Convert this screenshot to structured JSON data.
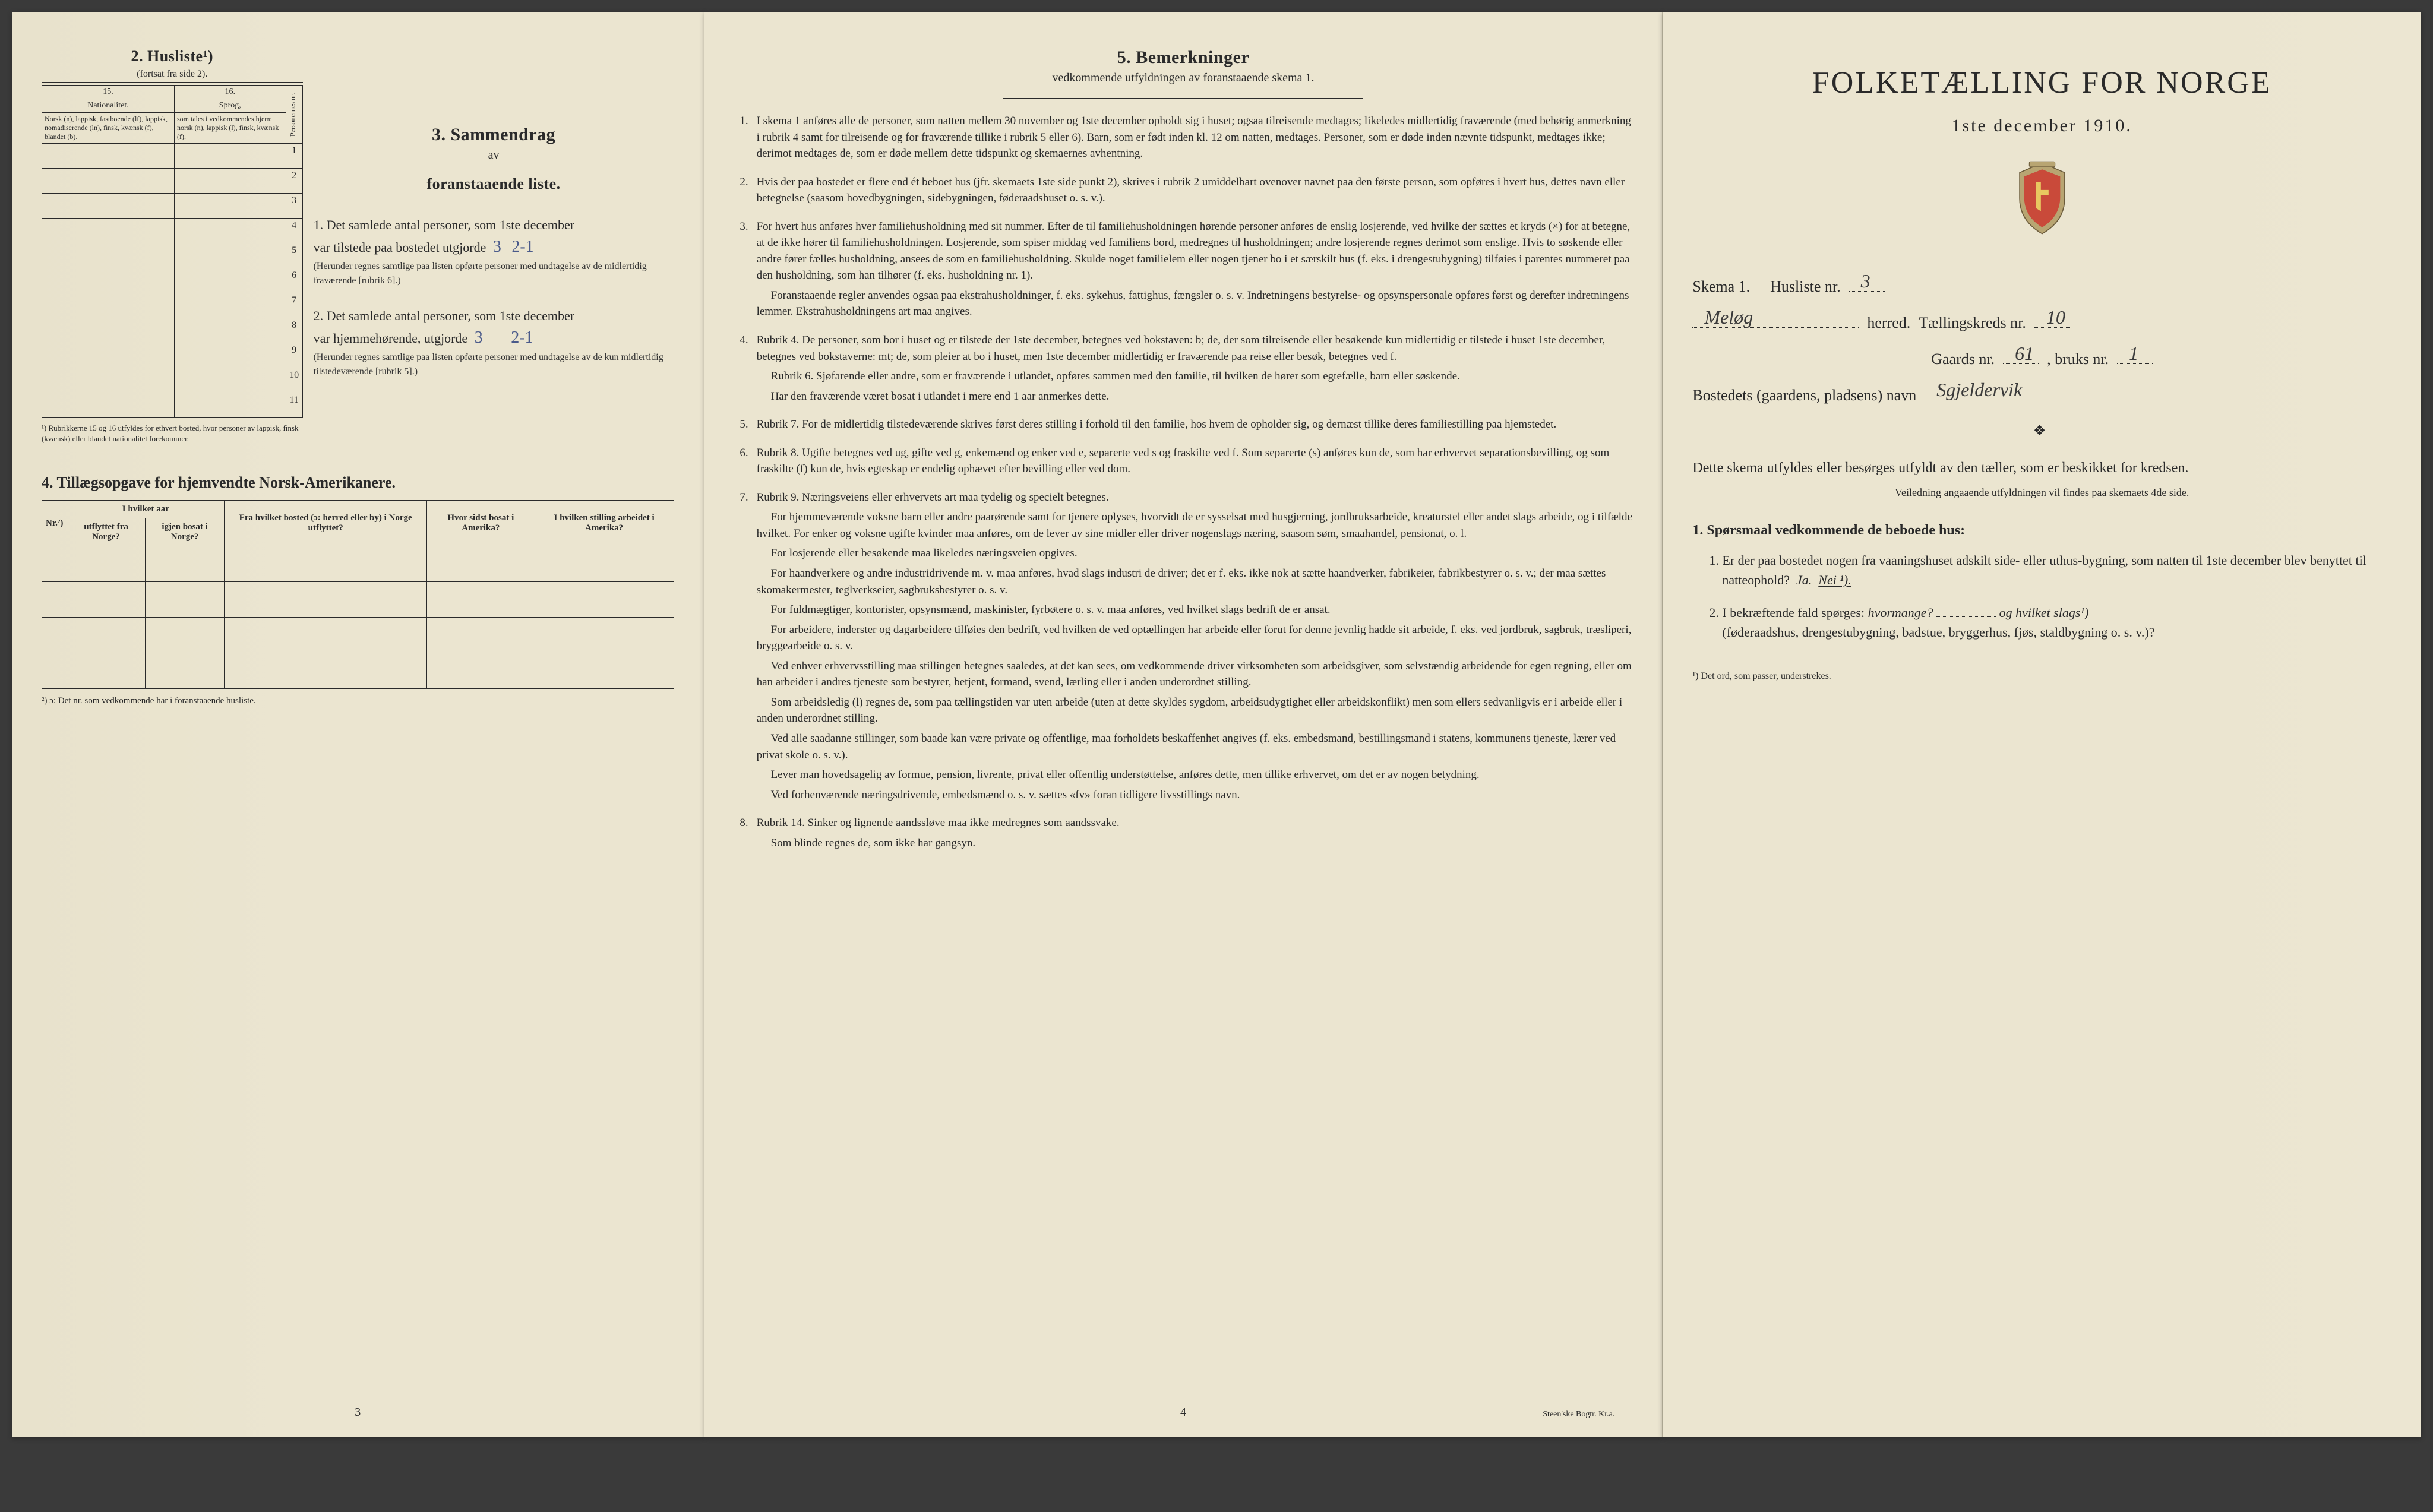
{
  "page1": {
    "husliste_title": "2. Husliste¹)",
    "husliste_sub": "(fortsat fra side 2).",
    "col15": "15.",
    "col16": "16.",
    "nat_header": "Nationalitet.",
    "sprog_header": "Sprog,",
    "nat_text": "Norsk (n), lappisk, fastboende (lf), lappisk, nomadiserende (ln), finsk, kvænsk (f), blandet (b).",
    "sprog_text": "som tales i vedkommendes hjem: norsk (n), lappisk (l), finsk, kvænsk (f).",
    "pers_col": "Personernes nr.",
    "rows": [
      "1",
      "2",
      "3",
      "4",
      "5",
      "6",
      "7",
      "8",
      "9",
      "10",
      "11"
    ],
    "footnote1": "¹) Rubrikkerne 15 og 16 utfyldes for ethvert bosted, hvor personer av lappisk, finsk (kvænsk) eller blandet nationalitet forekommer.",
    "sec3_title": "3. Sammendrag",
    "sec3_av": "av",
    "sec3_sub": "foranstaaende liste.",
    "item1_a": "1. Det samlede antal personer, som 1ste december",
    "item1_b": "var tilstede paa bostedet utgjorde",
    "item1_hand1": "3",
    "item1_hand2": "2-1",
    "item1_c": "(Herunder regnes samtlige paa listen opførte personer med undtagelse av de midlertidig fraværende [rubrik 6].)",
    "item2_a": "2. Det samlede antal personer, som 1ste december",
    "item2_b": "var hjemmehørende, utgjorde",
    "item2_hand1": "3",
    "item2_hand2": "2-1",
    "item2_c": "(Herunder regnes samtlige paa listen opførte personer med undtagelse av de kun midlertidig tilstedeværende [rubrik 5].)",
    "sec4_title": "4. Tillægsopgave for hjemvendte Norsk-Amerikanere.",
    "amer_cols": [
      "Nr.²)",
      "I hvilket aar",
      "Fra hvilket bosted (ɔ: herred eller by) i Norge utflyttet?",
      "Hvor sidst bosat i Amerika?",
      "I hvilken stilling arbeidet i Amerika?"
    ],
    "amer_sub": [
      "utflyttet fra Norge?",
      "igjen bosat i Norge?"
    ],
    "foot2": "²) ɔ: Det nr. som vedkommende har i foranstaaende husliste.",
    "pagenum": "3"
  },
  "page2": {
    "title": "5. Bemerkninger",
    "sub": "vedkommende utfyldningen av foranstaaende skema 1.",
    "items": [
      {
        "n": "1.",
        "paras": [
          "I skema 1 anføres alle de personer, som natten mellem 30 november og 1ste december opholdt sig i huset; ogsaa tilreisende medtages; likeledes midlertidig fraværende (med behørig anmerkning i rubrik 4 samt for tilreisende og for fraværende tillike i rubrik 5 eller 6). Barn, som er født inden kl. 12 om natten, medtages. Personer, som er døde inden nævnte tidspunkt, medtages ikke; derimot medtages de, som er døde mellem dette tidspunkt og skemaernes avhentning."
        ]
      },
      {
        "n": "2.",
        "paras": [
          "Hvis der paa bostedet er flere end ét beboet hus (jfr. skemaets 1ste side punkt 2), skrives i rubrik 2 umiddelbart ovenover navnet paa den første person, som opføres i hvert hus, dettes navn eller betegnelse (saasom hovedbygningen, sidebygningen, føderaadshuset o. s. v.)."
        ]
      },
      {
        "n": "3.",
        "paras": [
          "For hvert hus anføres hver familiehusholdning med sit nummer. Efter de til familiehusholdningen hørende personer anføres de enslig losjerende, ved hvilke der sættes et kryds (×) for at betegne, at de ikke hører til familiehusholdningen. Losjerende, som spiser middag ved familiens bord, medregnes til husholdningen; andre losjerende regnes derimot som enslige. Hvis to søskende eller andre fører fælles husholdning, ansees de som en familiehusholdning. Skulde noget familielem eller nogen tjener bo i et særskilt hus (f. eks. i drengestubygning) tilføies i parentes nummeret paa den husholdning, som han tilhører (f. eks. husholdning nr. 1).",
          "Foranstaaende regler anvendes ogsaa paa ekstrahusholdninger, f. eks. sykehus, fattighus, fængsler o. s. v. Indretningens bestyrelse- og opsynspersonale opføres først og derefter indretningens lemmer. Ekstrahusholdningens art maa angives."
        ]
      },
      {
        "n": "4.",
        "paras": [
          "Rubrik 4. De personer, som bor i huset og er tilstede der 1ste december, betegnes ved bokstaven: b; de, der som tilreisende eller besøkende kun midlertidig er tilstede i huset 1ste december, betegnes ved bokstaverne: mt; de, som pleier at bo i huset, men 1ste december midlertidig er fraværende paa reise eller besøk, betegnes ved f.",
          "Rubrik 6. Sjøfarende eller andre, som er fraværende i utlandet, opføres sammen med den familie, til hvilken de hører som egtefælle, barn eller søskende.",
          "Har den fraværende været bosat i utlandet i mere end 1 aar anmerkes dette."
        ]
      },
      {
        "n": "5.",
        "paras": [
          "Rubrik 7. For de midlertidig tilstedeværende skrives først deres stilling i forhold til den familie, hos hvem de opholder sig, og dernæst tillike deres familiestilling paa hjemstedet."
        ]
      },
      {
        "n": "6.",
        "paras": [
          "Rubrik 8. Ugifte betegnes ved ug, gifte ved g, enkemænd og enker ved e, separerte ved s og fraskilte ved f. Som separerte (s) anføres kun de, som har erhvervet separationsbevilling, og som fraskilte (f) kun de, hvis egteskap er endelig ophævet efter bevilling eller ved dom."
        ]
      },
      {
        "n": "7.",
        "paras": [
          "Rubrik 9. Næringsveiens eller erhvervets art maa tydelig og specielt betegnes.",
          "For hjemmeværende voksne barn eller andre paarørende samt for tjenere oplyses, hvorvidt de er sysselsat med husgjerning, jordbruksarbeide, kreaturstel eller andet slags arbeide, og i tilfælde hvilket. For enker og voksne ugifte kvinder maa anføres, om de lever av sine midler eller driver nogenslags næring, saasom søm, smaahandel, pensionat, o. l.",
          "For losjerende eller besøkende maa likeledes næringsveien opgives.",
          "For haandverkere og andre industridrivende m. v. maa anføres, hvad slags industri de driver; det er f. eks. ikke nok at sætte haandverker, fabrikeier, fabrikbestyrer o. s. v.; der maa sættes skomakermester, teglverkseier, sagbruksbestyrer o. s. v.",
          "For fuldmægtiger, kontorister, opsynsmænd, maskinister, fyrbøtere o. s. v. maa anføres, ved hvilket slags bedrift de er ansat.",
          "For arbeidere, inderster og dagarbeidere tilføies den bedrift, ved hvilken de ved optællingen har arbeide eller forut for denne jevnlig hadde sit arbeide, f. eks. ved jordbruk, sagbruk, træsliperi, bryggearbeide o. s. v.",
          "Ved enhver erhvervsstilling maa stillingen betegnes saaledes, at det kan sees, om vedkommende driver virksomheten som arbeidsgiver, som selvstændig arbeidende for egen regning, eller om han arbeider i andres tjeneste som bestyrer, betjent, formand, svend, lærling eller i anden underordnet stilling.",
          "Som arbeidsledig (l) regnes de, som paa tællingstiden var uten arbeide (uten at dette skyldes sygdom, arbeidsudygtighet eller arbeidskonflikt) men som ellers sedvanligvis er i arbeide eller i anden underordnet stilling.",
          "Ved alle saadanne stillinger, som baade kan være private og offentlige, maa forholdets beskaffenhet angives (f. eks. embedsmand, bestillingsmand i statens, kommunens tjeneste, lærer ved privat skole o. s. v.).",
          "Lever man hovedsagelig av formue, pension, livrente, privat eller offentlig understøttelse, anføres dette, men tillike erhvervet, om det er av nogen betydning.",
          "Ved forhenværende næringsdrivende, embedsmænd o. s. v. sættes «fv» foran tidligere livsstillings navn."
        ]
      },
      {
        "n": "8.",
        "paras": [
          "Rubrik 14. Sinker og lignende aandssløve maa ikke medregnes som aandssvake.",
          "Som blinde regnes de, som ikke har gangsyn."
        ]
      }
    ],
    "pagenum": "4",
    "printer": "Steen'ske Bogtr. Kr.a."
  },
  "page3": {
    "title": "FOLKETÆLLING FOR NORGE",
    "date": "1ste december 1910.",
    "skema": "Skema 1.",
    "husliste": "Husliste nr.",
    "husliste_val": "3",
    "herred_val": "Meløg",
    "herred_label": "herred.",
    "tellingskreds": "Tællingskreds nr.",
    "tellingskreds_val": "10",
    "gaards": "Gaards nr.",
    "gaards_val": "61",
    "bruks": ", bruks nr.",
    "bruks_val": "1",
    "bosted": "Bostedets (gaardens, pladsens) navn",
    "bosted_val": "Sgjeldervik",
    "instr": "Dette skema utfyldes eller besørges utfyldt av den tæller, som er beskikket for kredsen.",
    "instr_small": "Veiledning angaaende utfyldningen vil findes paa skemaets 4de side.",
    "sporsmaal_h": "1. Spørsmaal vedkommende de beboede hus:",
    "q1": "Er der paa bostedet nogen fra vaaningshuset adskilt side- eller uthus-bygning, som natten til 1ste december blev benyttet til natteophold?",
    "q1_ja": "Ja.",
    "q1_nei": "Nei ¹).",
    "q2a": "I bekræftende fald spørges:",
    "q2b": "hvormange?",
    "q2c": "og hvilket slags¹)",
    "q2d": "(føderaadshus, drengestubygning, badstue, bryggerhus, fjøs, staldbygning o. s. v.)?",
    "foot": "¹) Det ord, som passer, understrekes."
  },
  "colors": {
    "paper": "#ebe5d0",
    "ink": "#2a2a2a",
    "handwriting": "#4a5a8a"
  }
}
